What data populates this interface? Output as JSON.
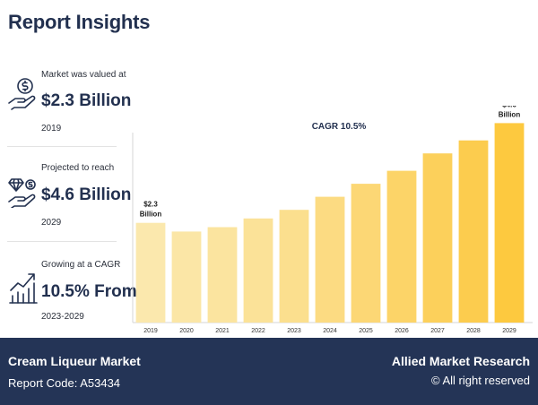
{
  "report": {
    "title": "Report Insights"
  },
  "stats": [
    {
      "caption": "Market was valued at",
      "value": "$2.3 Billion",
      "sub": "2019",
      "icon": "money-hand-icon"
    },
    {
      "caption": "Projected to reach",
      "value": "$4.6 Billion",
      "sub": "2029",
      "icon": "diamond-hand-icon"
    },
    {
      "caption": "Growing at a CAGR",
      "value": "10.5% From",
      "sub": "2023-2029",
      "icon": "growth-chart-icon"
    }
  ],
  "chart_data": {
    "type": "bar",
    "title": "CAGR 10.5%",
    "categories": [
      "2019",
      "2020",
      "2021",
      "2022",
      "2023",
      "2024",
      "2025",
      "2026",
      "2027",
      "2028",
      "2029"
    ],
    "values": [
      2.3,
      2.1,
      2.2,
      2.4,
      2.6,
      2.9,
      3.2,
      3.5,
      3.9,
      4.2,
      4.6
    ],
    "ylim": [
      0,
      5
    ],
    "grid": false,
    "annotations": [
      {
        "category": "2019",
        "line1": "$2.3",
        "line2": "Billion"
      },
      {
        "category": "2029",
        "line1": "$4.6",
        "line2": "Billion"
      }
    ],
    "colors": [
      "#fbe8ad",
      "#fbe6a6",
      "#fbe49f",
      "#fbe298",
      "#fbdf8e",
      "#fcdb82",
      "#fcd775",
      "#fcd468",
      "#fcd05b",
      "#fccc4e",
      "#fdc93f"
    ]
  },
  "footer": {
    "market": "Cream Liqueur Market",
    "code": "Report Code: A53434",
    "brand": "Allied Market Research",
    "rights": "© All right reserved"
  }
}
